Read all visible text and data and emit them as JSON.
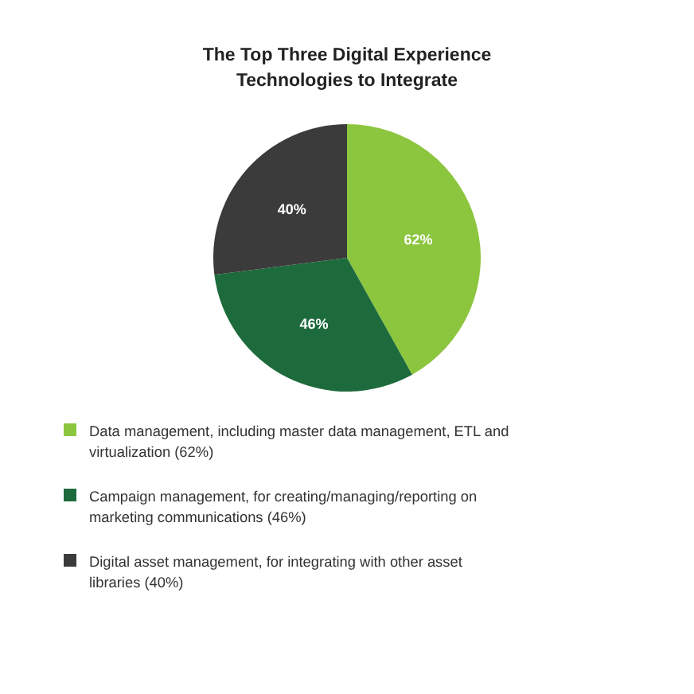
{
  "chart_data": {
    "type": "pie",
    "title": "The Top Three Digital Experience Technologies to Integrate",
    "categories": [
      "Data management, including master data management, ETL and virtualization (62%)",
      "Campaign management, for creating/managing/reporting on marketing communications (46%)",
      "Digital asset management, for integrating with other asset libraries (40%)"
    ],
    "values": [
      62,
      46,
      40
    ],
    "value_labels": [
      "62%",
      "46%",
      "40%"
    ],
    "colors": [
      "#8cc63f",
      "#1d6b3c",
      "#3b3b3b"
    ],
    "legend": "bottom"
  }
}
